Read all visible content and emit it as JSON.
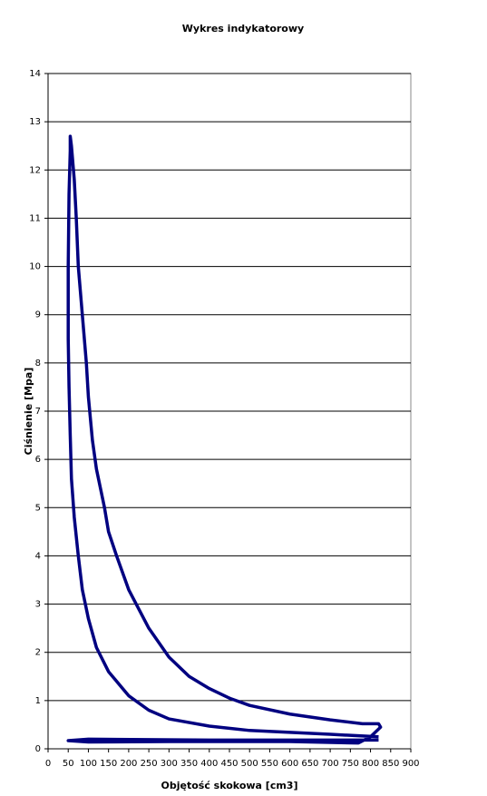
{
  "chart_data": {
    "type": "line",
    "title": "Wykres indykatorowy",
    "x_label": "Objętość skokowa [cm3]",
    "y_label": "Ciśnienie [Mpa]",
    "x": [
      820,
      700,
      500,
      400,
      300,
      250,
      200,
      150,
      120,
      100,
      85,
      75,
      65,
      58,
      55,
      52,
      50,
      50,
      52,
      55,
      55,
      58,
      65,
      70,
      75,
      85,
      95,
      100,
      110,
      120,
      140,
      150,
      170,
      200,
      250,
      300,
      350,
      400,
      450,
      500,
      600,
      700,
      780,
      820,
      825,
      800,
      770,
      600,
      300,
      100,
      50,
      100,
      400,
      820
    ],
    "series": [
      {
        "color": "#000080",
        "values": [
          0.25,
          0.3,
          0.38,
          0.47,
          0.62,
          0.8,
          1.1,
          1.6,
          2.1,
          2.7,
          3.3,
          4.0,
          4.8,
          5.6,
          6.5,
          7.5,
          8.5,
          10,
          11.5,
          12.4,
          12.7,
          12.5,
          11.8,
          11,
          10,
          9,
          8,
          7.3,
          6.4,
          5.8,
          5.0,
          4.5,
          4.0,
          3.3,
          2.5,
          1.9,
          1.5,
          1.25,
          1.05,
          0.9,
          0.72,
          0.6,
          0.52,
          0.52,
          0.45,
          0.25,
          0.12,
          0.15,
          0.15,
          0.14,
          0.17,
          0.2,
          0.18,
          0.18
        ]
      }
    ],
    "xlim": [
      0,
      900
    ],
    "xticks": [
      0,
      50,
      100,
      150,
      200,
      250,
      300,
      350,
      400,
      450,
      500,
      550,
      600,
      650,
      700,
      750,
      800,
      850,
      900
    ],
    "ylim": [
      0,
      14
    ],
    "yticks": [
      0,
      1,
      2,
      3,
      4,
      5,
      6,
      7,
      8,
      9,
      10,
      11,
      12,
      13,
      14
    ],
    "grid": true
  }
}
